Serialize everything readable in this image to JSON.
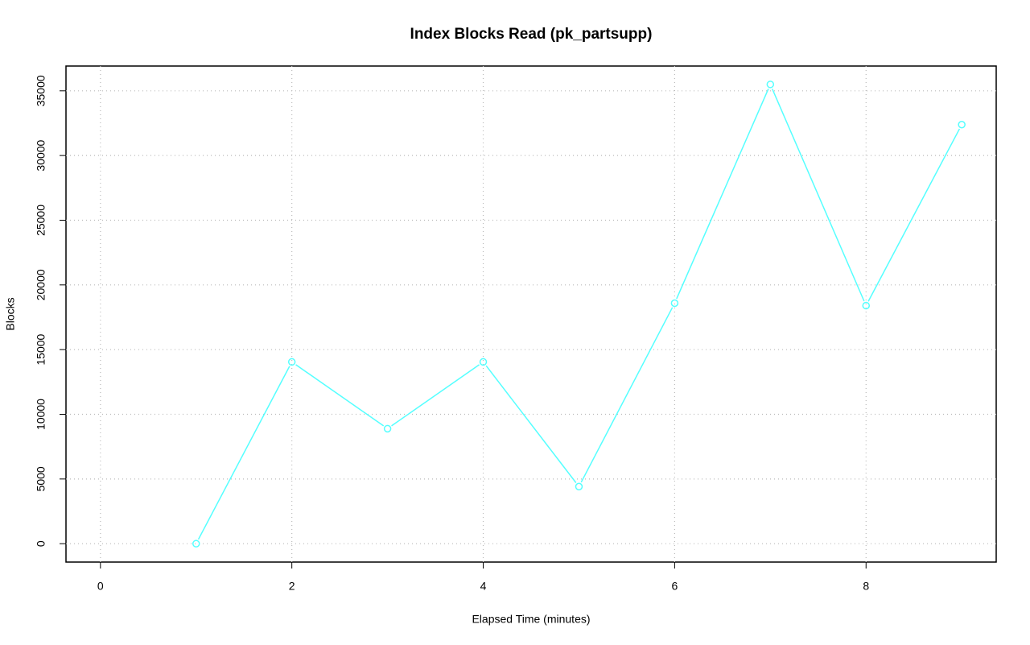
{
  "chart_data": {
    "type": "line",
    "title": "Index Blocks Read (pk_partsupp)",
    "x_label": "Elapsed Time (minutes)",
    "y_label": "Blocks",
    "x": [
      1,
      2,
      3,
      4,
      5,
      6,
      7,
      8,
      9
    ],
    "series": [
      {
        "name": "pk_partsupp",
        "color": "#55ffff",
        "values": [
          0,
          14050,
          8890,
          14050,
          4414,
          18588,
          35497,
          18401,
          32389
        ]
      }
    ],
    "xlim": [
      -0.36,
      9.36
    ],
    "ylim": [
      -1420,
      36917
    ],
    "xticks": [
      0,
      2,
      4,
      6,
      8
    ],
    "yticks": [
      0,
      5000,
      10000,
      15000,
      20000,
      25000,
      30000,
      35000
    ],
    "grid": true
  }
}
